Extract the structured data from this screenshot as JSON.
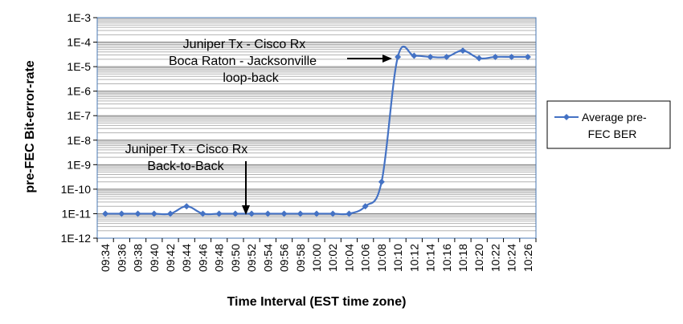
{
  "chart_data": {
    "type": "line",
    "title": "",
    "xlabel": "Time Interval  (EST time zone)",
    "ylabel": "pre-FEC Bit-error-rate",
    "y_scale": "log",
    "ylim": [
      1e-12,
      0.001
    ],
    "y_ticks": [
      "1E-12",
      "1E-11",
      "1E-10",
      "1E-9",
      "1E-8",
      "1E-7",
      "1E-6",
      "1E-5",
      "1E-4",
      "1E-3"
    ],
    "categories": [
      "09:34",
      "09:36",
      "09:38",
      "09:40",
      "09:42",
      "09:44",
      "09:46",
      "09:48",
      "09:50",
      "09:52",
      "09:54",
      "09:56",
      "09:58",
      "10:00",
      "10:02",
      "10:04",
      "10:06",
      "10:08",
      "10:10",
      "10:12",
      "10:14",
      "10:16",
      "10:18",
      "10:20",
      "10:22",
      "10:24",
      "10:26"
    ],
    "series": [
      {
        "name": "Average pre-FEC BER",
        "color": "#4472C4",
        "marker": "diamond",
        "values": [
          1e-11,
          1e-11,
          1e-11,
          1e-11,
          1e-11,
          2e-11,
          1e-11,
          1e-11,
          1e-11,
          1e-11,
          1e-11,
          1e-11,
          1e-11,
          1e-11,
          1e-11,
          1e-11,
          2e-11,
          2e-10,
          2.5e-05,
          2.8e-05,
          2.5e-05,
          2.5e-05,
          4.5e-05,
          2.2e-05,
          2.5e-05,
          2.5e-05,
          2.5e-05
        ]
      }
    ],
    "grid": true,
    "legend_position": "right",
    "annotations": [
      {
        "lines": [
          "Juniper Tx - Cisco Rx",
          "Boca Raton - Jacksonville",
          "loop-back"
        ],
        "arrow_direction": "right"
      },
      {
        "lines": [
          "Juniper Tx - Cisco Rx",
          "Back-to-Back"
        ],
        "arrow_direction": "down"
      }
    ]
  }
}
